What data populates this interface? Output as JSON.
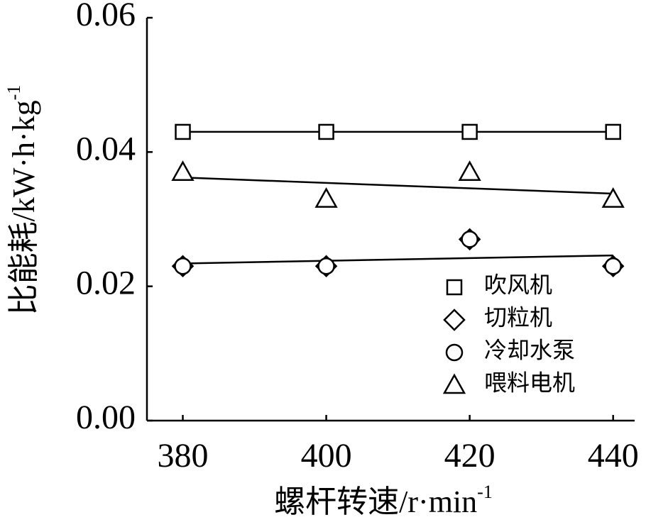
{
  "chart_data": {
    "type": "scatter",
    "xlabel": {
      "text": "螺杆转速/r·min",
      "sup": "-1"
    },
    "ylabel": {
      "text": "比能耗/kW·h·kg",
      "sup": "-1"
    },
    "x": [
      380,
      400,
      420,
      440
    ],
    "series": [
      {
        "name": "吹风机",
        "marker": "square",
        "color": "#000000",
        "trendline": true,
        "values": [
          0.043,
          0.043,
          0.043,
          0.043
        ]
      },
      {
        "name": "切粒机",
        "marker": "diamond",
        "color": "#000000",
        "trendline": false,
        "values": [
          0.023,
          0.023,
          0.027,
          0.023
        ]
      },
      {
        "name": "冷却水泵",
        "marker": "circle",
        "color": "#000000",
        "trendline": true,
        "values": [
          0.023,
          0.023,
          0.027,
          0.023
        ]
      },
      {
        "name": "喂料电机",
        "marker": "triangle",
        "color": "#000000",
        "trendline": true,
        "values": [
          0.037,
          0.033,
          0.037,
          0.033
        ]
      }
    ],
    "xlim": [
      375,
      443
    ],
    "xticks": [
      380,
      400,
      420,
      440
    ],
    "ylim": [
      0,
      0.06
    ],
    "yticks": [
      {
        "value": 0,
        "label": "0.00"
      },
      {
        "value": 0.02,
        "label": "0.02"
      },
      {
        "value": 0.04,
        "label": "0.04"
      },
      {
        "value": 0.06,
        "label": "0.06"
      }
    ],
    "grid": false,
    "legend": "lower right"
  }
}
